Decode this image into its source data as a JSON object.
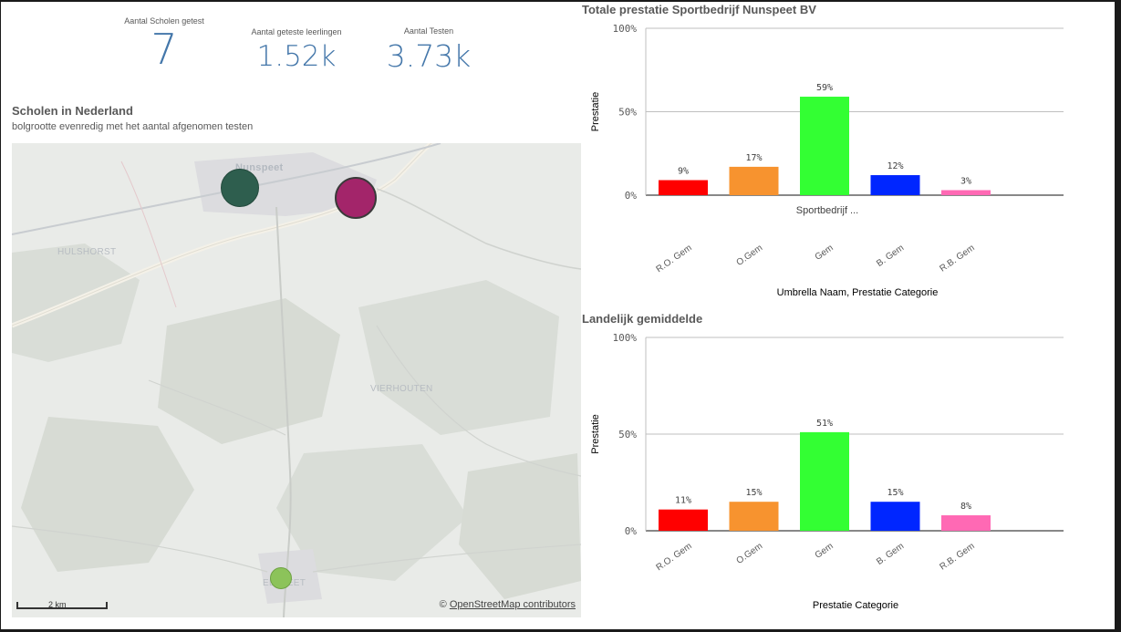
{
  "kpis": [
    {
      "label": "Aantal Scholen getest",
      "value": "7"
    },
    {
      "label": "Aantal geteste leerlingen",
      "value": "1.52k"
    },
    {
      "label": "Aantal Testen",
      "value": "3.73k"
    }
  ],
  "map_section": {
    "title": "Scholen in Nederland",
    "subtitle": "bolgrootte evenredig met het aantal afgenomen testen",
    "labels": {
      "nunspeet": "Nunspeet",
      "hulshorst": "HULSHORST",
      "vierhouten": "VIERHOUTEN",
      "elspeet": "ELSPEET"
    },
    "scale_label": "2 km",
    "attribution_prefix": "©",
    "attribution_link": "OpenStreetMap contributors",
    "bubbles": [
      {
        "name": "school-bubble-1",
        "color": "#2e5e4e"
      },
      {
        "name": "school-bubble-2",
        "color": "#a3256a"
      },
      {
        "name": "school-bubble-3",
        "color": "#8cc35a"
      }
    ]
  },
  "colors": {
    "R.O. Gem": "#ff0000",
    "O.Gem": "#f7932f",
    "Gem": "#33ff33",
    "B. Gem": "#0026ff",
    "R.B. Gem": "#ff69b4"
  },
  "chart_data": [
    {
      "type": "bar",
      "title": "Totale prestatie Sportbedrijf Nunspeet BV",
      "ylabel": "Prestatie",
      "xlabel": "Umbrella Naam, Prestatie Categorie",
      "group_label": "Sportbedrijf ...",
      "categories": [
        "R.O. Gem",
        "O.Gem",
        "Gem",
        "B. Gem",
        "R.B. Gem"
      ],
      "values": [
        9,
        17,
        59,
        12,
        3
      ],
      "value_labels": [
        "9%",
        "17%",
        "59%",
        "12%",
        "3%"
      ],
      "yticks": [
        "0%",
        "50%",
        "100%"
      ],
      "ylim": [
        0,
        100
      ],
      "grid": true
    },
    {
      "type": "bar",
      "title": "Landelijk gemiddelde",
      "ylabel": "Prestatie",
      "xlabel": "Prestatie Categorie",
      "categories": [
        "R.O. Gem",
        "O.Gem",
        "Gem",
        "B. Gem",
        "R.B. Gem"
      ],
      "values": [
        11,
        15,
        51,
        15,
        8
      ],
      "value_labels": [
        "11%",
        "15%",
        "51%",
        "15%",
        "8%"
      ],
      "yticks": [
        "0%",
        "50%",
        "100%"
      ],
      "ylim": [
        0,
        100
      ],
      "grid": true
    }
  ]
}
